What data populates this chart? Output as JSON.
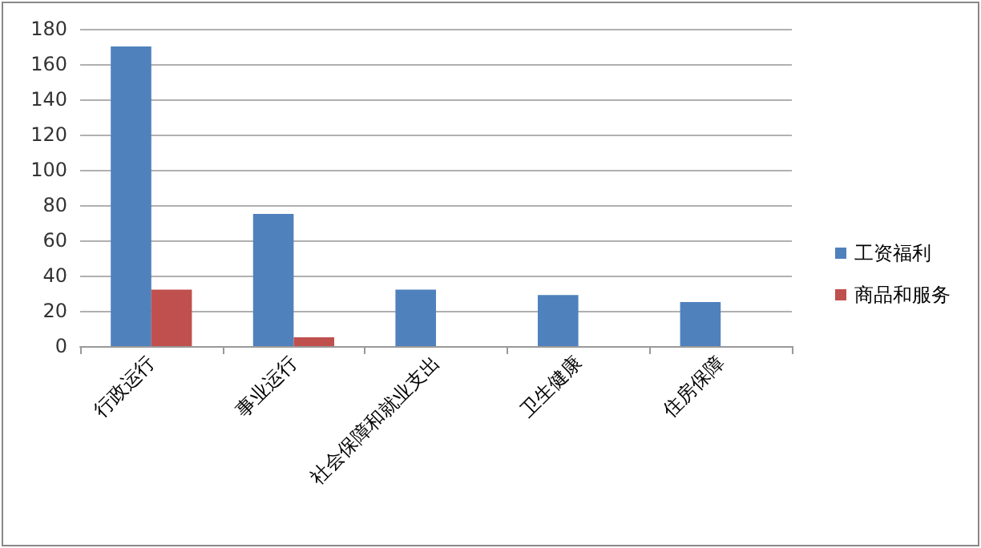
{
  "chart_data": {
    "type": "bar",
    "categories": [
      "行政运行",
      "事业运行",
      "社会保障和就业支出",
      "卫生健康",
      "住房保障"
    ],
    "series": [
      {
        "name": "工资福利",
        "color": "#4f81bd",
        "values": [
          170,
          75,
          32,
          29,
          25
        ]
      },
      {
        "name": "商品和服务",
        "color": "#c0504d",
        "values": [
          32,
          5,
          null,
          null,
          null
        ]
      }
    ],
    "ylim": [
      0,
      180
    ],
    "yticks": [
      0,
      20,
      40,
      60,
      80,
      100,
      120,
      140,
      160,
      180
    ],
    "grid": "y",
    "legend": "right"
  }
}
